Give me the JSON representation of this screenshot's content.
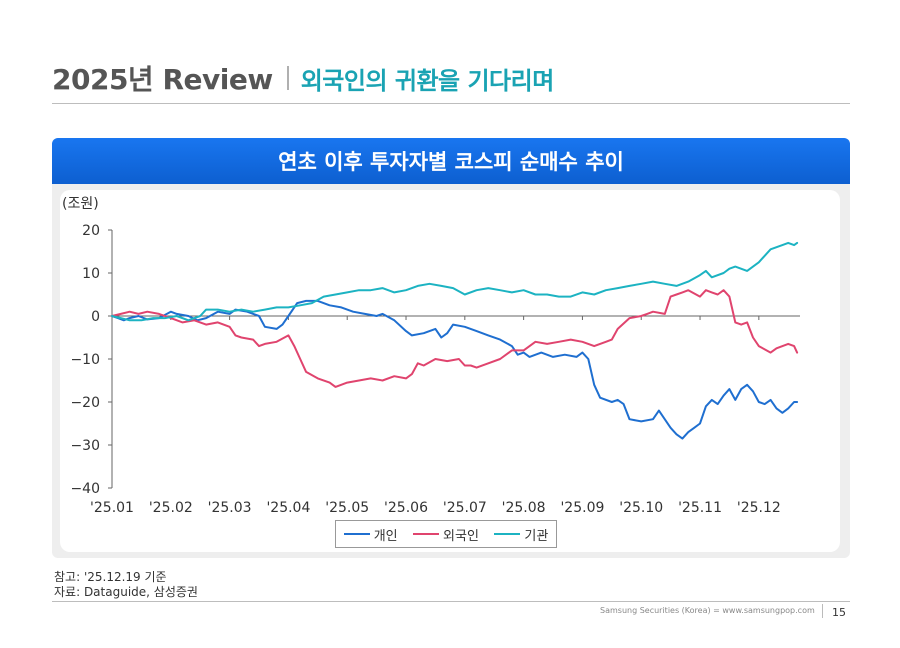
{
  "header": {
    "main": "2025년 Review",
    "sub": "외국인의 귀환을 기다리며"
  },
  "card": {
    "title": "연초 이후 투자자별 코스피 순매수 추이"
  },
  "colors": {
    "individual": "#1f6fd0",
    "foreign": "#e0446e",
    "institution": "#1cb3c2",
    "title_bar": "#1670e8",
    "subtitle": "#1aa3b3"
  },
  "chart_data": {
    "type": "line",
    "unit_label": "(조원)",
    "title": "연초 이후 투자자별 코스피 순매수 추이",
    "ylim": [
      -40,
      20
    ],
    "yticks": [
      20,
      10,
      0,
      -10,
      -20,
      -30,
      -40
    ],
    "ytick_labels": [
      "20",
      "10",
      "0",
      "−10",
      "−20",
      "−30",
      "−40"
    ],
    "xlim": [
      0,
      11.7
    ],
    "xticks": [
      0,
      1,
      2,
      3,
      4,
      5,
      6,
      7,
      8,
      9,
      10,
      11
    ],
    "xtick_labels": [
      "'25.01",
      "'25.02",
      "'25.03",
      "'25.04",
      "'25.05",
      "'25.06",
      "'25.07",
      "'25.08",
      "'25.09",
      "'25.10",
      "'25.11",
      "'25.12"
    ],
    "legend_position": "bottom",
    "series": [
      {
        "name": "개인",
        "key": "individual",
        "x": [
          0,
          0.1,
          0.2,
          0.3,
          0.45,
          0.6,
          0.8,
          1.0,
          1.1,
          1.3,
          1.45,
          1.6,
          1.8,
          2.0,
          2.1,
          2.3,
          2.5,
          2.6,
          2.8,
          2.9,
          3.0,
          3.15,
          3.3,
          3.5,
          3.7,
          3.9,
          4.1,
          4.3,
          4.5,
          4.6,
          4.8,
          5.0,
          5.1,
          5.3,
          5.5,
          5.6,
          5.7,
          5.8,
          6.0,
          6.2,
          6.4,
          6.6,
          6.8,
          6.9,
          7.0,
          7.1,
          7.3,
          7.5,
          7.7,
          7.9,
          8.0,
          8.1,
          8.2,
          8.3,
          8.5,
          8.6,
          8.7,
          8.8,
          9.0,
          9.2,
          9.3,
          9.5,
          9.6,
          9.7,
          9.8,
          9.9,
          10.0,
          10.1,
          10.2,
          10.3,
          10.4,
          10.5,
          10.6,
          10.7,
          10.8,
          10.9,
          11.0,
          11.1,
          11.2,
          11.3,
          11.4,
          11.5,
          11.6,
          11.65
        ],
        "y": [
          0,
          -0.5,
          -1.0,
          -0.5,
          0,
          -0.8,
          -0.5,
          1.0,
          0.5,
          0,
          -1.0,
          -0.5,
          1.0,
          0.5,
          1.5,
          1.0,
          0,
          -2.5,
          -3.0,
          -2.0,
          0,
          3.0,
          3.5,
          3.5,
          2.5,
          2.0,
          1.0,
          0.5,
          0,
          0.5,
          -1.0,
          -3.5,
          -4.5,
          -4.0,
          -3.0,
          -5.0,
          -4.0,
          -2.0,
          -2.5,
          -3.5,
          -4.5,
          -5.5,
          -7.0,
          -9.0,
          -8.5,
          -9.5,
          -8.5,
          -9.5,
          -9.0,
          -9.5,
          -8.5,
          -10.0,
          -16.0,
          -19.0,
          -20.0,
          -19.5,
          -20.5,
          -24.0,
          -24.5,
          -24.0,
          -22.0,
          -26.0,
          -27.5,
          -28.5,
          -27.0,
          -26.0,
          -25.0,
          -21.0,
          -19.5,
          -20.5,
          -18.5,
          -17.0,
          -19.5,
          -17.0,
          -16.0,
          -17.5,
          -20.0,
          -20.5,
          -19.5,
          -21.5,
          -22.5,
          -21.5,
          -20.0,
          -20.0
        ]
      },
      {
        "name": "외국인",
        "key": "foreign",
        "x": [
          0,
          0.15,
          0.3,
          0.45,
          0.6,
          0.8,
          1.0,
          1.2,
          1.4,
          1.6,
          1.8,
          2.0,
          2.1,
          2.2,
          2.4,
          2.5,
          2.6,
          2.8,
          3.0,
          3.1,
          3.2,
          3.3,
          3.5,
          3.7,
          3.8,
          4.0,
          4.2,
          4.4,
          4.6,
          4.8,
          5.0,
          5.1,
          5.2,
          5.3,
          5.5,
          5.7,
          5.9,
          6.0,
          6.1,
          6.2,
          6.4,
          6.6,
          6.8,
          7.0,
          7.2,
          7.4,
          7.6,
          7.8,
          8.0,
          8.2,
          8.4,
          8.5,
          8.6,
          8.8,
          9.0,
          9.1,
          9.2,
          9.4,
          9.5,
          9.6,
          9.7,
          9.8,
          10.0,
          10.1,
          10.2,
          10.3,
          10.4,
          10.5,
          10.6,
          10.7,
          10.8,
          10.9,
          11.0,
          11.2,
          11.3,
          11.5,
          11.6,
          11.65
        ],
        "y": [
          0,
          0.5,
          1.0,
          0.5,
          1.0,
          0.5,
          -0.5,
          -1.5,
          -1.0,
          -2.0,
          -1.5,
          -2.5,
          -4.5,
          -5.0,
          -5.5,
          -7.0,
          -6.5,
          -6.0,
          -4.5,
          -7.0,
          -10.0,
          -13.0,
          -14.5,
          -15.5,
          -16.5,
          -15.5,
          -15.0,
          -14.5,
          -15.0,
          -14.0,
          -14.5,
          -13.5,
          -11.0,
          -11.5,
          -10.0,
          -10.5,
          -10.0,
          -11.5,
          -11.5,
          -12.0,
          -11.0,
          -10.0,
          -8.0,
          -8.0,
          -6.0,
          -6.5,
          -6.0,
          -5.5,
          -6.0,
          -7.0,
          -6.0,
          -5.5,
          -3.0,
          -0.5,
          0,
          0.5,
          1.0,
          0.5,
          4.5,
          5.0,
          5.5,
          6.0,
          4.5,
          6.0,
          5.5,
          5.0,
          6.0,
          4.5,
          -1.5,
          -2.0,
          -1.5,
          -5.0,
          -7.0,
          -8.5,
          -7.5,
          -6.5,
          -7.0,
          -8.5
        ]
      },
      {
        "name": "기관",
        "key": "institution",
        "x": [
          0,
          0.15,
          0.3,
          0.5,
          0.7,
          0.9,
          1.1,
          1.3,
          1.5,
          1.6,
          1.8,
          2.0,
          2.2,
          2.4,
          2.6,
          2.8,
          3.0,
          3.2,
          3.4,
          3.6,
          3.8,
          4.0,
          4.2,
          4.4,
          4.6,
          4.8,
          5.0,
          5.2,
          5.4,
          5.6,
          5.8,
          6.0,
          6.2,
          6.4,
          6.6,
          6.8,
          7.0,
          7.2,
          7.4,
          7.6,
          7.8,
          8.0,
          8.2,
          8.4,
          8.6,
          8.8,
          9.0,
          9.2,
          9.4,
          9.6,
          9.8,
          10.0,
          10.1,
          10.2,
          10.4,
          10.5,
          10.6,
          10.8,
          11.0,
          11.1,
          11.2,
          11.4,
          11.5,
          11.6,
          11.65
        ],
        "y": [
          0,
          -0.5,
          -1.0,
          -1.0,
          -0.5,
          -0.5,
          0,
          -1.0,
          0,
          1.5,
          1.5,
          1.0,
          1.5,
          1.0,
          1.5,
          2.0,
          2.0,
          2.5,
          3.0,
          4.5,
          5.0,
          5.5,
          6.0,
          6.0,
          6.5,
          5.5,
          6.0,
          7.0,
          7.5,
          7.0,
          6.5,
          5.0,
          6.0,
          6.5,
          6.0,
          5.5,
          6.0,
          5.0,
          5.0,
          4.5,
          4.5,
          5.5,
          5.0,
          6.0,
          6.5,
          7.0,
          7.5,
          8.0,
          7.5,
          7.0,
          8.0,
          9.5,
          10.5,
          9.0,
          10.0,
          11.0,
          11.5,
          10.5,
          12.5,
          14.0,
          15.5,
          16.5,
          17.0,
          16.5,
          17.0
        ]
      }
    ]
  },
  "notes": {
    "reference": "참고: '25.12.19 기준",
    "source": "자료: Dataguide, 삼성증권"
  },
  "footer": {
    "company": "Samsung Securities (Korea) = www.samsungpop.com",
    "page": "15"
  }
}
